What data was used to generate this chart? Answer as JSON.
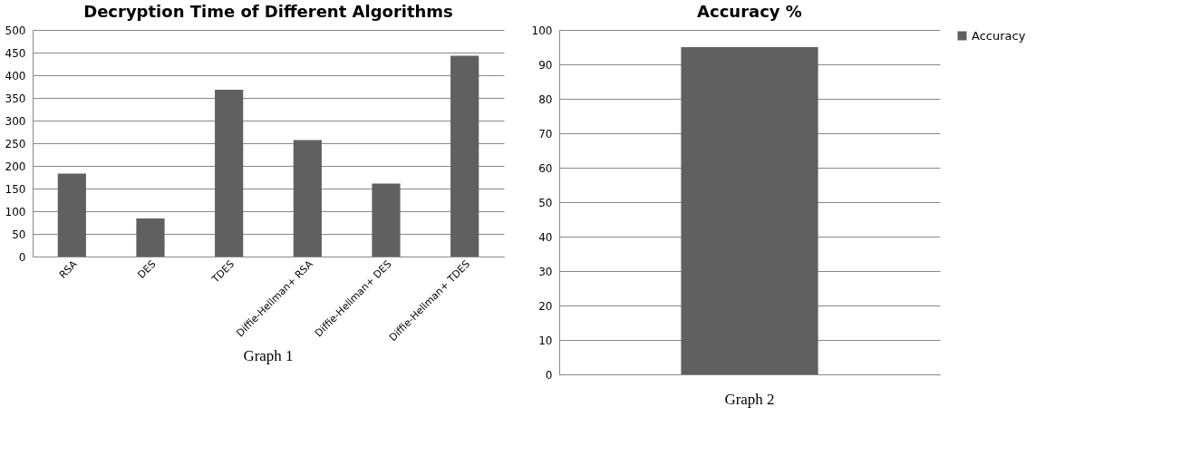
{
  "chart_data": [
    {
      "type": "bar",
      "title": "Decryption Time of Different Algorithms",
      "categories": [
        "RSA",
        "DES",
        "TDES",
        "Diffie-Hellman+ RSA",
        "Diffie-Hellman+ DES",
        "Diffie-Hellman+ TDES"
      ],
      "values": [
        183,
        84,
        368,
        257,
        161,
        443
      ],
      "color": "#606060",
      "ylim": [
        0,
        500
      ],
      "yticks": [
        0,
        50,
        100,
        150,
        200,
        250,
        300,
        350,
        400,
        450,
        500
      ],
      "grid": "y",
      "annotations": [
        "Graph 1"
      ]
    },
    {
      "type": "bar",
      "title": "Accuracy %",
      "categories": [
        null
      ],
      "series": [
        {
          "name": "Accuracy",
          "color": "#606060",
          "values": [
            95
          ]
        }
      ],
      "ylim": [
        0,
        100
      ],
      "yticks": [
        0,
        10,
        20,
        30,
        40,
        50,
        60,
        70,
        80,
        90,
        100
      ],
      "grid": "y",
      "legend": "right",
      "annotations": [
        "Graph 2"
      ]
    }
  ]
}
